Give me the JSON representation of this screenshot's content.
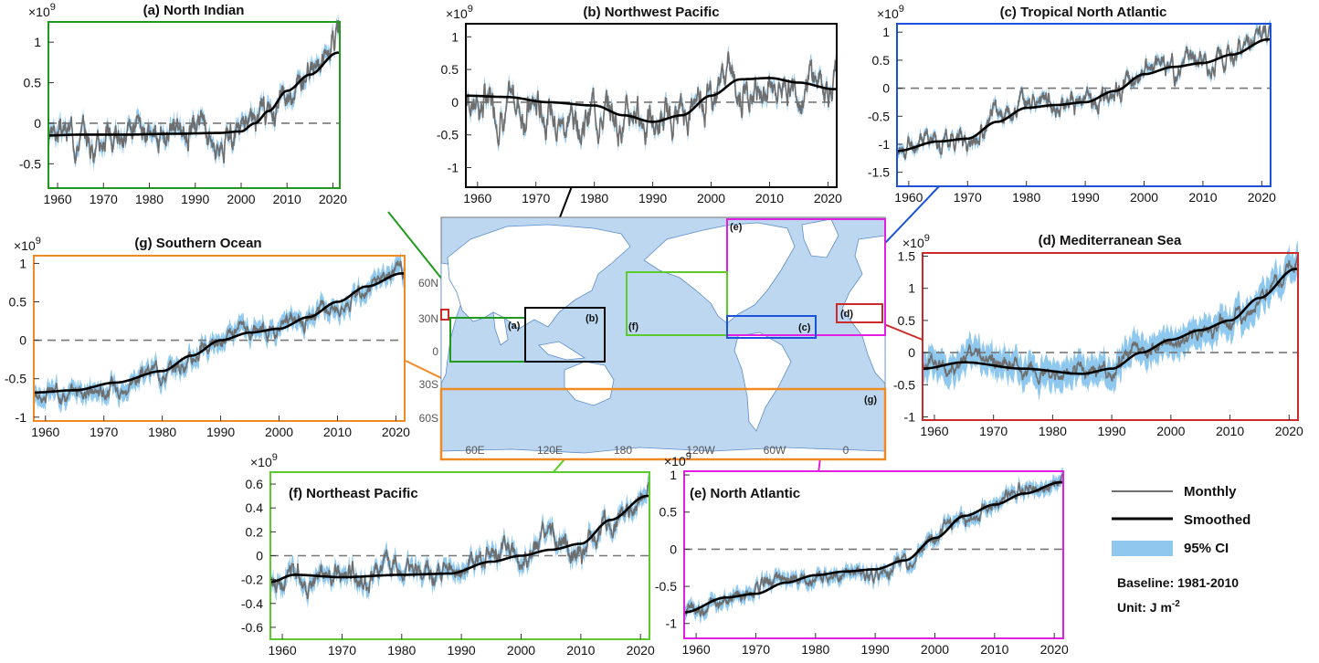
{
  "legend": {
    "monthly": "Monthly",
    "smoothed": "Smoothed",
    "ci": "95% CI",
    "baseline": "Baseline: 1981-2010",
    "unit_prefix": "Unit: J m",
    "unit_exp": "-2"
  },
  "colors": {
    "monthly": "#6e6e6e",
    "smoothed": "#000000",
    "ci": "#8ec8ef",
    "baseline": "#777777"
  },
  "map": {
    "lat_labels": [
      "60N",
      "30N",
      "0",
      "30S",
      "60S"
    ],
    "lon_labels": [
      "60E",
      "120E",
      "180",
      "120W",
      "60W",
      "0"
    ],
    "region_labels": [
      "(a)",
      "(b)",
      "(c)",
      "(d)",
      "(e)",
      "(f)",
      "(g)"
    ]
  },
  "chart_data": [
    {
      "id": "a",
      "type": "line",
      "title": "(a) North Indian",
      "color": "#1f9a1f",
      "scale_label": "×10",
      "scale_exp": "9",
      "ylim": [
        -0.8,
        1.25
      ],
      "yticks": [
        "-0.5",
        "0",
        "0.5",
        "1"
      ],
      "yvals": [
        -0.5,
        0,
        0.5,
        1
      ],
      "xticks": [
        "1960",
        "1970",
        "1980",
        "1990",
        "2000",
        "2010",
        "2020"
      ],
      "smooth_x": [
        1958,
        1965,
        1975,
        1985,
        1995,
        2000,
        2003,
        2006,
        2010,
        2015,
        2021
      ],
      "smooth_y": [
        -0.15,
        -0.14,
        -0.14,
        -0.13,
        -0.12,
        -0.1,
        0.0,
        0.15,
        0.4,
        0.6,
        0.87
      ],
      "noise": 0.2,
      "ci_width": 0.08,
      "seed": 3
    },
    {
      "id": "b",
      "type": "line",
      "title": "(b) Northwest Pacific",
      "color": "#000000",
      "scale_label": "×10",
      "scale_exp": "9",
      "ylim": [
        -1.3,
        1.2
      ],
      "yticks": [
        "-1",
        "-0.5",
        "0",
        "0.5",
        "1"
      ],
      "yvals": [
        -1,
        -0.5,
        0,
        0.5,
        1
      ],
      "xticks": [
        "1960",
        "1970",
        "1980",
        "1990",
        "2000",
        "2010",
        "2020"
      ],
      "smooth_x": [
        1958,
        1965,
        1972,
        1980,
        1985,
        1990,
        1995,
        2000,
        2005,
        2010,
        2015,
        2021
      ],
      "smooth_y": [
        0.1,
        0.08,
        0.0,
        -0.05,
        -0.2,
        -0.3,
        -0.2,
        0.1,
        0.35,
        0.37,
        0.3,
        0.2
      ],
      "noise": 0.35,
      "ci_width": 0.08,
      "seed": 7
    },
    {
      "id": "c",
      "type": "line",
      "title": "(c) Tropical North Atlantic",
      "color": "#1a52d9",
      "scale_label": "×10",
      "scale_exp": "9",
      "ylim": [
        -1.75,
        1.15
      ],
      "yticks": [
        "-1.5",
        "-1",
        "-0.5",
        "0",
        "0.5",
        "1"
      ],
      "yvals": [
        -1.5,
        -1,
        -0.5,
        0,
        0.5,
        1
      ],
      "xticks": [
        "1960",
        "1970",
        "1980",
        "1990",
        "2000",
        "2010",
        "2020"
      ],
      "smooth_x": [
        1958,
        1965,
        1970,
        1975,
        1980,
        1985,
        1990,
        1995,
        2000,
        2005,
        2010,
        2015,
        2021
      ],
      "smooth_y": [
        -1.12,
        -0.95,
        -0.9,
        -0.6,
        -0.35,
        -0.3,
        -0.25,
        -0.05,
        0.25,
        0.38,
        0.45,
        0.6,
        0.87
      ],
      "noise": 0.25,
      "ci_width": 0.08,
      "seed": 11
    },
    {
      "id": "d",
      "type": "line",
      "title": "(d) Mediterranean Sea",
      "color": "#cc2a2a",
      "scale_label": "×10",
      "scale_exp": "9",
      "ylim": [
        -1.05,
        1.55
      ],
      "yticks": [
        "-1",
        "-0.5",
        "0",
        "0.5",
        "1",
        "1.5"
      ],
      "yvals": [
        -1,
        -0.5,
        0,
        0.5,
        1,
        1.5
      ],
      "xticks": [
        "1960",
        "1970",
        "1980",
        "1990",
        "2000",
        "2010",
        "2020"
      ],
      "smooth_x": [
        1958,
        1965,
        1975,
        1985,
        1990,
        1995,
        2000,
        2005,
        2010,
        2015,
        2021
      ],
      "smooth_y": [
        -0.25,
        -0.15,
        -0.25,
        -0.33,
        -0.25,
        0.0,
        0.2,
        0.35,
        0.5,
        0.85,
        1.3
      ],
      "noise": 0.15,
      "ci_width": 0.2,
      "seed": 5
    },
    {
      "id": "e",
      "type": "line",
      "title": "(e) North Atlantic",
      "color": "#e21ee2",
      "scale_label": "×10",
      "scale_exp": "9",
      "ylim": [
        -1.2,
        1.05
      ],
      "yticks": [
        "-1",
        "-0.5",
        "0",
        "0.5",
        "1"
      ],
      "yvals": [
        -1,
        -0.5,
        0,
        0.5,
        1
      ],
      "xticks": [
        "1960",
        "1970",
        "1980",
        "1990",
        "2000",
        "2010",
        "2020"
      ],
      "smooth_x": [
        1958,
        1965,
        1970,
        1975,
        1980,
        1985,
        1990,
        1995,
        2000,
        2005,
        2010,
        2015,
        2021
      ],
      "smooth_y": [
        -0.85,
        -0.65,
        -0.6,
        -0.45,
        -0.35,
        -0.3,
        -0.27,
        -0.15,
        0.15,
        0.45,
        0.6,
        0.75,
        0.9
      ],
      "noise": 0.12,
      "ci_width": 0.08,
      "seed": 9
    },
    {
      "id": "f",
      "type": "line",
      "title": "(f) Northeast Pacific",
      "color": "#5acb2a",
      "scale_label": "×10",
      "scale_exp": "9",
      "ylim": [
        -0.7,
        0.7
      ],
      "yticks": [
        "-0.6",
        "-0.4",
        "-0.2",
        "0",
        "0.2",
        "0.4",
        "0.6"
      ],
      "yvals": [
        -0.6,
        -0.4,
        -0.2,
        0,
        0.2,
        0.4,
        0.6
      ],
      "xticks": [
        "1960",
        "1970",
        "1980",
        "1990",
        "2000",
        "2010",
        "2020"
      ],
      "smooth_x": [
        1958,
        1962,
        1970,
        1980,
        1988,
        1995,
        2000,
        2005,
        2010,
        2015,
        2021
      ],
      "smooth_y": [
        -0.22,
        -0.16,
        -0.18,
        -0.16,
        -0.15,
        -0.05,
        0.0,
        0.05,
        0.1,
        0.3,
        0.5
      ],
      "noise": 0.12,
      "ci_width": 0.06,
      "seed": 13
    },
    {
      "id": "g",
      "type": "line",
      "title": "(g) Southern Ocean",
      "color": "#f08a24",
      "scale_label": "×10",
      "scale_exp": "9",
      "ylim": [
        -1.05,
        1.1
      ],
      "yticks": [
        "-1",
        "-0.5",
        "0",
        "0.5",
        "1"
      ],
      "yvals": [
        -1,
        -0.5,
        0,
        0.5,
        1
      ],
      "xticks": [
        "1960",
        "1970",
        "1980",
        "1990",
        "2000",
        "2010",
        "2020"
      ],
      "smooth_x": [
        1958,
        1965,
        1972,
        1980,
        1985,
        1990,
        1995,
        2000,
        2005,
        2010,
        2015,
        2021
      ],
      "smooth_y": [
        -0.68,
        -0.65,
        -0.55,
        -0.4,
        -0.2,
        0.0,
        0.1,
        0.15,
        0.3,
        0.5,
        0.7,
        0.87
      ],
      "noise": 0.12,
      "ci_width": 0.1,
      "seed": 17
    }
  ]
}
